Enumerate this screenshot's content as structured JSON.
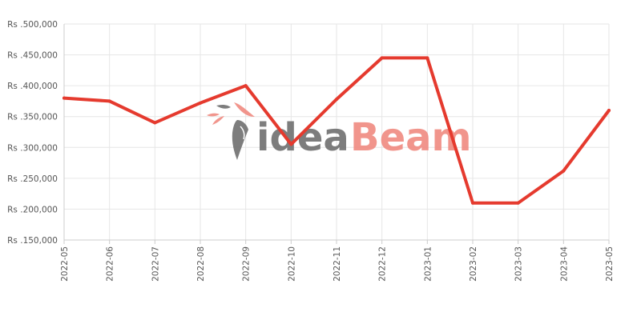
{
  "chart_data": {
    "type": "line",
    "title": "",
    "xlabel": "",
    "ylabel": "",
    "x": [
      "2022-05",
      "2022-06",
      "2022-07",
      "2022-08",
      "2022-09",
      "2022-10",
      "2022-11",
      "2022-12",
      "2023-01",
      "2023-02",
      "2023-03",
      "2023-04",
      "2023-05"
    ],
    "series": [
      {
        "values": [
          380000,
          375000,
          340000,
          372000,
          400000,
          305000,
          378000,
          445000,
          445000,
          210000,
          210000,
          262000,
          360000
        ]
      }
    ],
    "ylim": [
      150000,
      500000
    ],
    "yticks": [
      150000,
      200000,
      250000,
      300000,
      350000,
      400000,
      450000,
      500000
    ],
    "ytick_labels": [
      "Rs .150,000",
      "Rs .200,000",
      "Rs .250,000",
      "Rs .300,000",
      "Rs .350,000",
      "Rs .400,000",
      "Rs .450,000",
      "Rs .500,000"
    ],
    "grid": true,
    "line_color": "#e53a2e"
  },
  "watermark": {
    "part1": "idea",
    "part2": "Beam"
  }
}
